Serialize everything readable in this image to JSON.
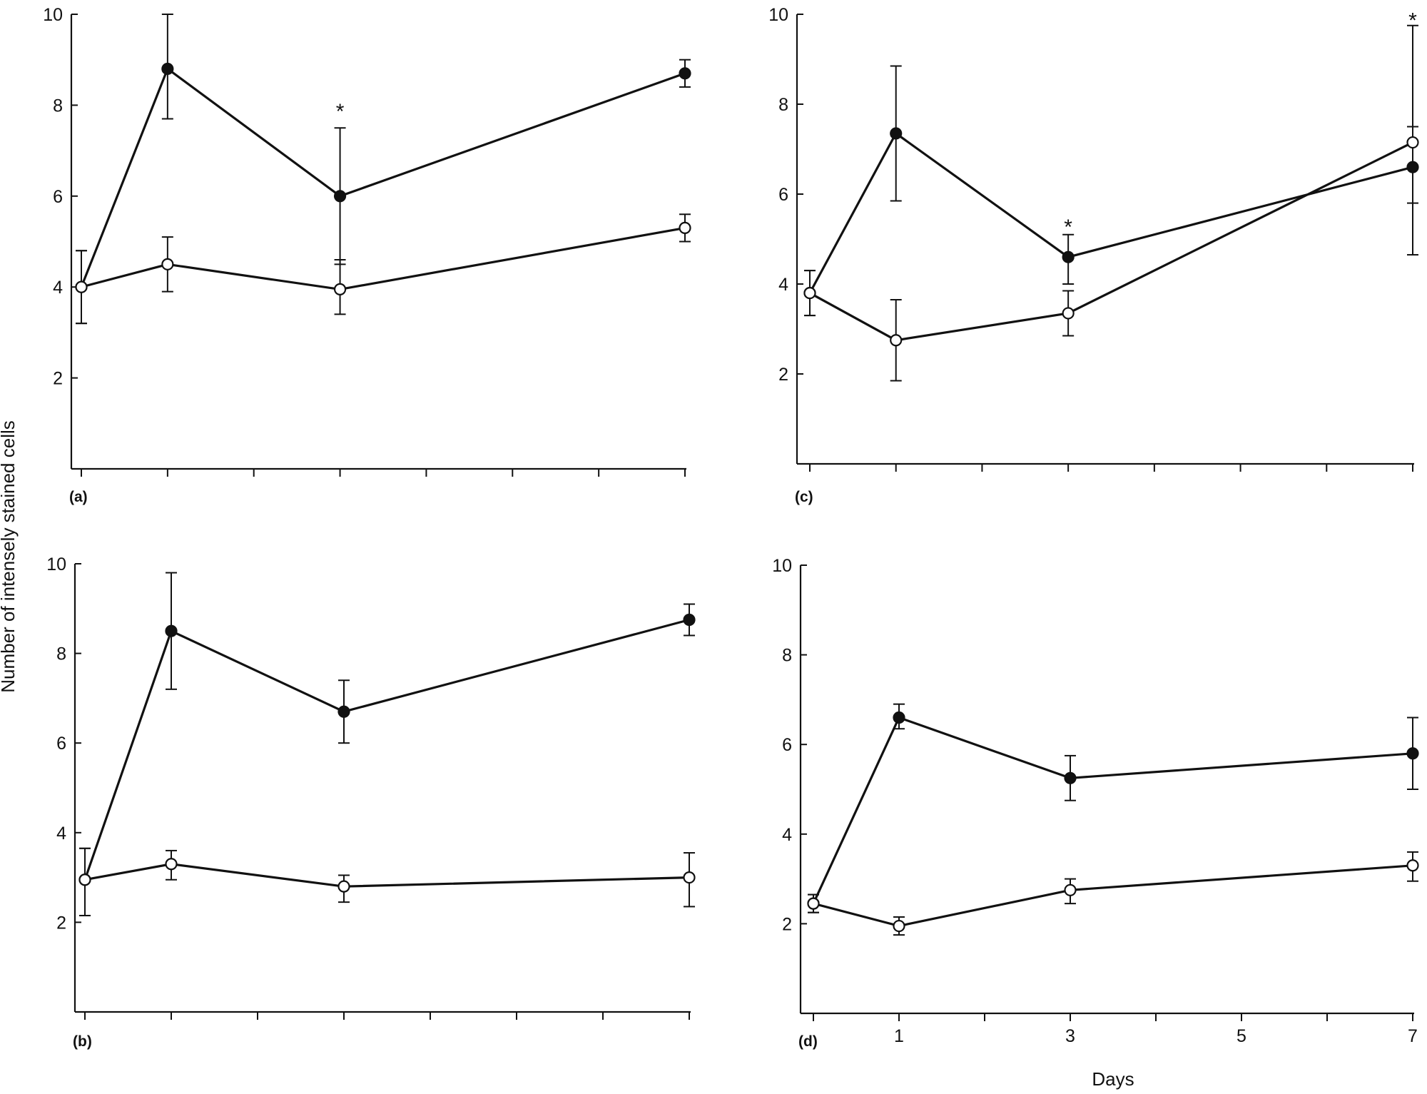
{
  "figure": {
    "ylabel": "Number of intensely stained cells",
    "xlabel": "Days"
  },
  "chart_data": [
    {
      "type": "line",
      "panel": "(a)",
      "ylim": [
        0,
        10
      ],
      "yticks": [
        "2",
        "4",
        "6",
        "8",
        "10"
      ],
      "xticks": [
        "",
        "",
        "",
        "",
        "",
        "",
        "",
        ""
      ],
      "series": [
        {
          "marker": "filled",
          "x": [
            0,
            1,
            3,
            7
          ],
          "y": [
            4.0,
            8.8,
            6.0,
            8.7
          ],
          "err_low": [
            0.8,
            1.1,
            1.5,
            0.3
          ],
          "err_high": [
            0.8,
            1.2,
            1.5,
            0.3
          ]
        },
        {
          "marker": "open",
          "x": [
            0,
            1,
            3,
            7
          ],
          "y": [
            4.0,
            4.5,
            3.95,
            5.3
          ],
          "err_low": [
            0.8,
            0.6,
            0.55,
            0.3
          ],
          "err_high": [
            0.8,
            0.6,
            0.65,
            0.3
          ]
        }
      ],
      "annotations": [
        {
          "text": "*",
          "x": 3,
          "y": 7.9
        }
      ]
    },
    {
      "type": "line",
      "panel": "(c)",
      "ylim": [
        0,
        10
      ],
      "yticks": [
        "2",
        "4",
        "6",
        "8",
        "10"
      ],
      "xticks": [
        "",
        "",
        "",
        "",
        "",
        "",
        "",
        ""
      ],
      "series": [
        {
          "marker": "filled",
          "x": [
            0,
            1,
            3,
            7
          ],
          "y": [
            3.8,
            7.35,
            4.6,
            6.6
          ],
          "err_low": [
            0.5,
            1.5,
            0.6,
            0.8
          ],
          "err_high": [
            0.5,
            1.5,
            0.5,
            0.9
          ]
        },
        {
          "marker": "open",
          "x": [
            0,
            1,
            3,
            7
          ],
          "y": [
            3.8,
            2.75,
            3.35,
            7.15
          ],
          "err_low": [
            0.5,
            0.9,
            0.5,
            2.5
          ],
          "err_high": [
            0.5,
            0.9,
            0.5,
            2.6
          ]
        }
      ],
      "annotations": [
        {
          "text": "*",
          "x": 3,
          "y": 5.3
        },
        {
          "text": "*",
          "x": 7,
          "y": 9.9
        }
      ]
    },
    {
      "type": "line",
      "panel": "(b)",
      "ylim": [
        0,
        10
      ],
      "yticks": [
        "2",
        "4",
        "6",
        "8",
        "10"
      ],
      "xticks": [
        "",
        "",
        "",
        "",
        "",
        "",
        "",
        ""
      ],
      "series": [
        {
          "marker": "filled",
          "x": [
            0,
            1,
            3,
            7
          ],
          "y": [
            2.95,
            8.5,
            6.7,
            8.75
          ],
          "err_low": [
            0.8,
            1.3,
            0.7,
            0.35
          ],
          "err_high": [
            0.7,
            1.3,
            0.7,
            0.35
          ]
        },
        {
          "marker": "open",
          "x": [
            0,
            1,
            3,
            7
          ],
          "y": [
            2.95,
            3.3,
            2.8,
            3.0
          ],
          "err_low": [
            0.8,
            0.35,
            0.35,
            0.65
          ],
          "err_high": [
            0.7,
            0.3,
            0.25,
            0.55
          ]
        }
      ],
      "annotations": []
    },
    {
      "type": "line",
      "panel": "(d)",
      "ylim": [
        0,
        10
      ],
      "yticks": [
        "2",
        "4",
        "6",
        "8",
        "10"
      ],
      "xticks": [
        "",
        "1",
        "",
        "3",
        "",
        "5",
        "",
        "7"
      ],
      "series": [
        {
          "marker": "filled",
          "x": [
            0,
            1,
            3,
            7
          ],
          "y": [
            2.45,
            6.6,
            5.25,
            5.8
          ],
          "err_low": [
            0.2,
            0.25,
            0.5,
            0.8
          ],
          "err_high": [
            0.2,
            0.3,
            0.5,
            0.8
          ]
        },
        {
          "marker": "open",
          "x": [
            0,
            1,
            3,
            7
          ],
          "y": [
            2.45,
            1.95,
            2.75,
            3.3
          ],
          "err_low": [
            0.2,
            0.2,
            0.3,
            0.35
          ],
          "err_high": [
            0.2,
            0.2,
            0.25,
            0.3
          ]
        }
      ],
      "annotations": []
    }
  ]
}
